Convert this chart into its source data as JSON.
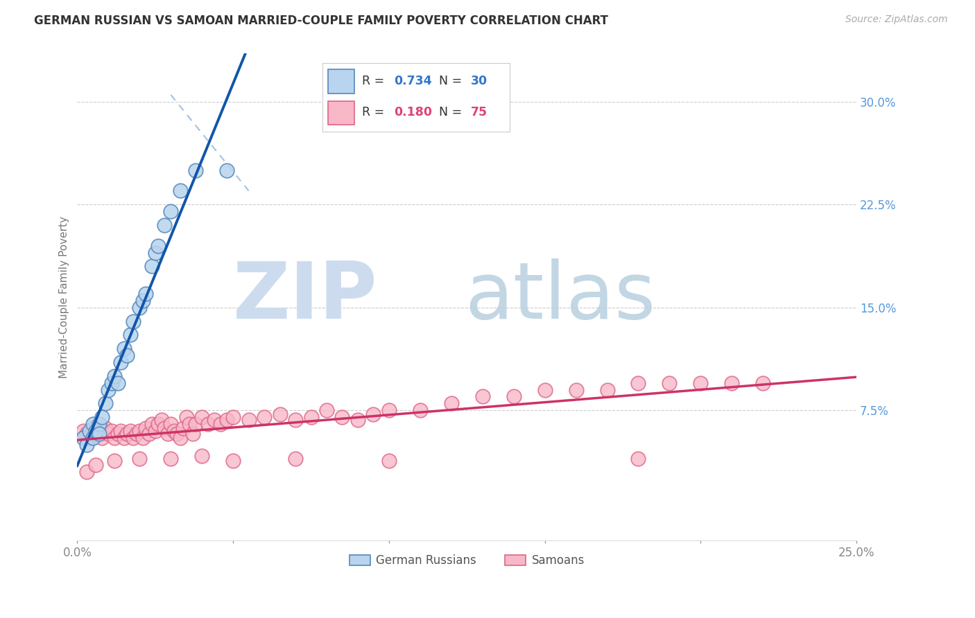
{
  "title": "GERMAN RUSSIAN VS SAMOAN MARRIED-COUPLE FAMILY POVERTY CORRELATION CHART",
  "source": "Source: ZipAtlas.com",
  "ylabel": "Married-Couple Family Poverty",
  "xlim": [
    0.0,
    0.25
  ],
  "ylim": [
    -0.02,
    0.335
  ],
  "blue_fill": "#b8d4ee",
  "blue_edge": "#5588bb",
  "pink_fill": "#f8b8c8",
  "pink_edge": "#dd6688",
  "blue_line": "#1155aa",
  "pink_line": "#cc3366",
  "dash_color": "#99bbdd",
  "grid_color": "#cccccc",
  "background": "#ffffff",
  "title_color": "#333333",
  "source_color": "#aaaaaa",
  "right_tick_color": "#5599dd",
  "axis_label_color": "#777777",
  "legend_border": "#cccccc",
  "legend_r_color": "#3377cc",
  "legend_n_color": "#3377cc",
  "legend_r2_color": "#dd4477",
  "legend_n2_color": "#dd4477",
  "gr_x": [
    0.002,
    0.003,
    0.004,
    0.005,
    0.005,
    0.006,
    0.007,
    0.007,
    0.008,
    0.009,
    0.01,
    0.011,
    0.012,
    0.013,
    0.014,
    0.015,
    0.016,
    0.017,
    0.018,
    0.02,
    0.021,
    0.022,
    0.024,
    0.025,
    0.026,
    0.028,
    0.03,
    0.033,
    0.038,
    0.048
  ],
  "gr_y": [
    0.055,
    0.05,
    0.06,
    0.055,
    0.065,
    0.06,
    0.065,
    0.058,
    0.07,
    0.08,
    0.09,
    0.095,
    0.1,
    0.095,
    0.11,
    0.12,
    0.115,
    0.13,
    0.14,
    0.15,
    0.155,
    0.16,
    0.18,
    0.19,
    0.195,
    0.21,
    0.22,
    0.235,
    0.25,
    0.25
  ],
  "sam_x": [
    0.002,
    0.003,
    0.004,
    0.005,
    0.006,
    0.007,
    0.008,
    0.009,
    0.01,
    0.011,
    0.012,
    0.013,
    0.014,
    0.015,
    0.016,
    0.017,
    0.018,
    0.019,
    0.02,
    0.021,
    0.022,
    0.023,
    0.024,
    0.025,
    0.026,
    0.027,
    0.028,
    0.029,
    0.03,
    0.031,
    0.032,
    0.033,
    0.034,
    0.035,
    0.036,
    0.037,
    0.038,
    0.04,
    0.042,
    0.044,
    0.046,
    0.048,
    0.05,
    0.055,
    0.06,
    0.065,
    0.07,
    0.075,
    0.08,
    0.085,
    0.09,
    0.095,
    0.1,
    0.11,
    0.12,
    0.13,
    0.14,
    0.15,
    0.16,
    0.17,
    0.18,
    0.19,
    0.2,
    0.21,
    0.22,
    0.003,
    0.006,
    0.012,
    0.02,
    0.03,
    0.04,
    0.05,
    0.07,
    0.1,
    0.18
  ],
  "sam_y": [
    0.06,
    0.058,
    0.055,
    0.062,
    0.058,
    0.06,
    0.055,
    0.062,
    0.058,
    0.06,
    0.055,
    0.058,
    0.06,
    0.055,
    0.058,
    0.06,
    0.055,
    0.058,
    0.06,
    0.055,
    0.062,
    0.058,
    0.065,
    0.06,
    0.065,
    0.068,
    0.062,
    0.058,
    0.065,
    0.06,
    0.058,
    0.055,
    0.062,
    0.07,
    0.065,
    0.058,
    0.065,
    0.07,
    0.065,
    0.068,
    0.065,
    0.068,
    0.07,
    0.068,
    0.07,
    0.072,
    0.068,
    0.07,
    0.075,
    0.07,
    0.068,
    0.072,
    0.075,
    0.075,
    0.08,
    0.085,
    0.085,
    0.09,
    0.09,
    0.09,
    0.095,
    0.095,
    0.095,
    0.095,
    0.095,
    0.03,
    0.035,
    0.038,
    0.04,
    0.04,
    0.042,
    0.038,
    0.04,
    0.038,
    0.04
  ],
  "watermark_zip": "ZIP",
  "watermark_atlas": "atlas"
}
